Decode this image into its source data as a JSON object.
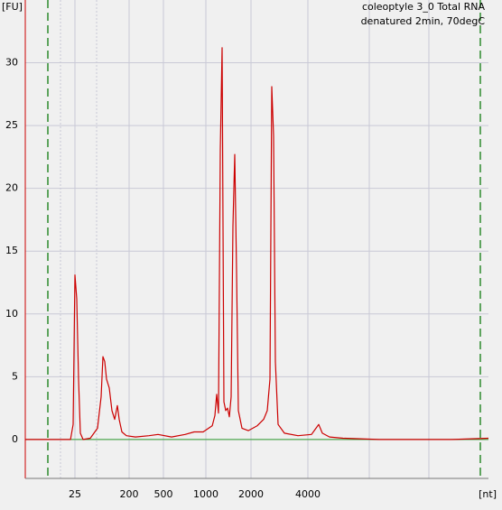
{
  "chart_data": {
    "type": "line",
    "title": "coleoptyle 3_0 Total RNA",
    "subtitle": "denatured 2min, 70degC",
    "y_label": "[FU]",
    "x_label": "[nt]",
    "xlim": [
      4,
      36000
    ],
    "xticks": [
      25,
      200,
      500,
      1000,
      2000,
      4000
    ],
    "ylim": [
      -3.1,
      35
    ],
    "yticks": [
      0,
      5,
      10,
      15,
      20,
      25,
      30
    ],
    "grid": true,
    "series": [
      {
        "color": "#cc0000",
        "x": [
          4,
          8.3,
          21.2,
          23.4,
          25,
          26.8,
          28.7,
          30.8,
          34.1,
          45,
          59.5,
          68.3,
          73.2,
          78.5,
          84.1,
          93.3,
          103.6,
          114.9,
          127.5,
          136.6,
          151.6,
          180,
          237,
          340,
          433,
          571,
          712,
          826,
          957,
          1103,
          1149,
          1181,
          1214,
          1248,
          1283,
          1319,
          1356,
          1395,
          1434,
          1474,
          1516,
          1558,
          1602,
          1647,
          1741,
          1919,
          2160,
          2333,
          2438,
          2520,
          2576,
          2633,
          2692,
          2782,
          3004,
          3544,
          4180,
          4416,
          4564,
          4769,
          5207,
          6140,
          9530,
          22950,
          36000
        ],
        "values": [
          0,
          0,
          0,
          1.2,
          13.1,
          11.2,
          4.8,
          0.5,
          0,
          0.1,
          0.9,
          3.4,
          6.6,
          6.2,
          4.8,
          4.1,
          2.3,
          1.6,
          2.7,
          1.6,
          0.6,
          0.3,
          0.2,
          0.3,
          0.4,
          0.2,
          0.4,
          0.6,
          0.6,
          1.1,
          1.9,
          3.6,
          2.1,
          23.1,
          31.2,
          3.0,
          2.3,
          2.5,
          1.8,
          3.4,
          17,
          22.7,
          13.4,
          2.3,
          0.9,
          0.7,
          1.1,
          1.6,
          2.3,
          4.8,
          28.1,
          24.2,
          6.2,
          1.2,
          0.5,
          0.3,
          0.4,
          0.9,
          1.2,
          0.5,
          0.2,
          0.1,
          0,
          0,
          0.1
        ]
      }
    ]
  }
}
